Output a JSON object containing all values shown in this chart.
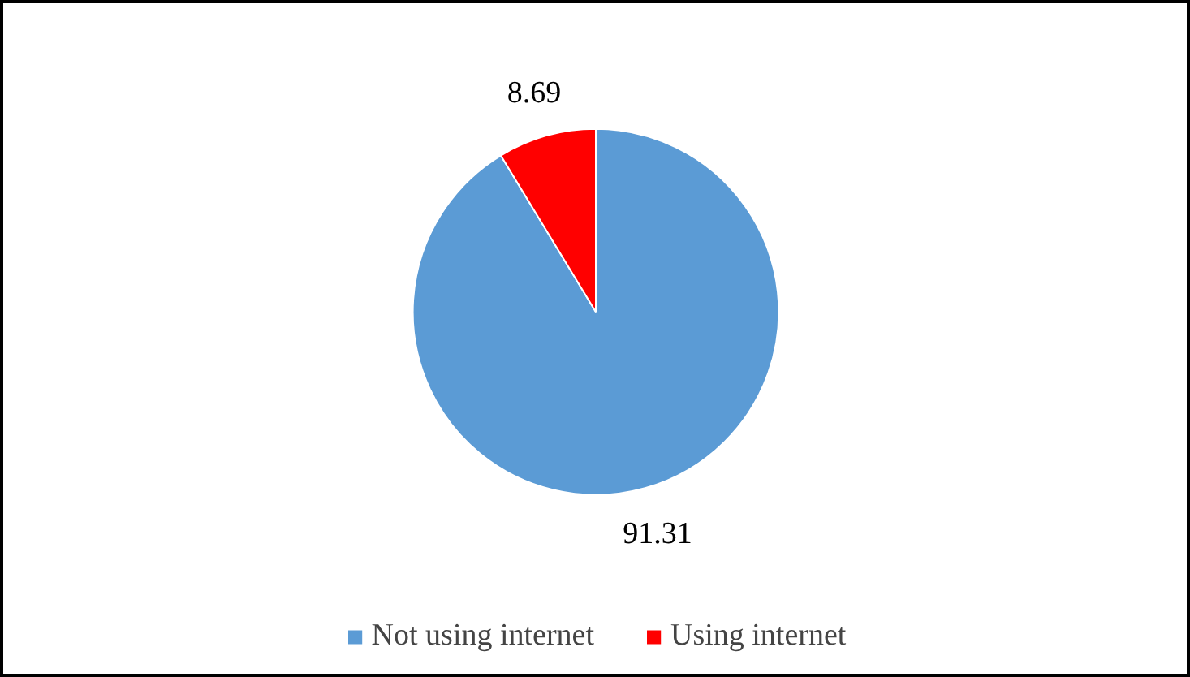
{
  "chart_data": {
    "type": "pie",
    "categories": [
      "Not using internet",
      "Using internet"
    ],
    "values": [
      91.31,
      8.69
    ],
    "colors": [
      "#5b9bd5",
      "#ff0000"
    ],
    "data_labels": true,
    "legend": "bottom"
  }
}
